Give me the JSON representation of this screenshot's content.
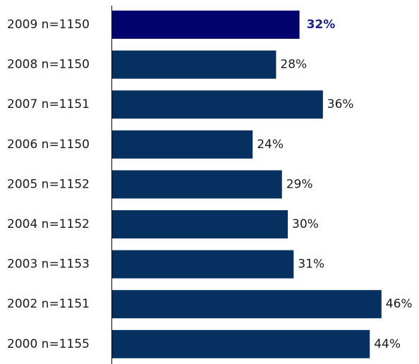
{
  "chart_data": {
    "type": "bar",
    "orientation": "horizontal",
    "categories": [
      "2009 n=1150",
      "2008 n=1150",
      "2007 n=1151",
      "2006 n=1150",
      "2005 n=1152",
      "2004 n=1152",
      "2003 n=1153",
      "2002 n=1151",
      "2000 n=1155"
    ],
    "values": [
      32,
      28,
      36,
      24,
      29,
      30,
      31,
      46,
      44
    ],
    "value_labels": [
      "32%",
      "28%",
      "36%",
      "24%",
      "29%",
      "30%",
      "31%",
      "46%",
      "44%"
    ],
    "highlight_index": 0,
    "xlim": [
      0,
      50
    ],
    "title": "",
    "xlabel": "",
    "ylabel": "",
    "grid": false,
    "legend": "none",
    "colors": {
      "bar": "#06305f",
      "highlight_bar": "#03036e",
      "highlight_label": "#1b1f8a",
      "axis": "#000000"
    }
  }
}
